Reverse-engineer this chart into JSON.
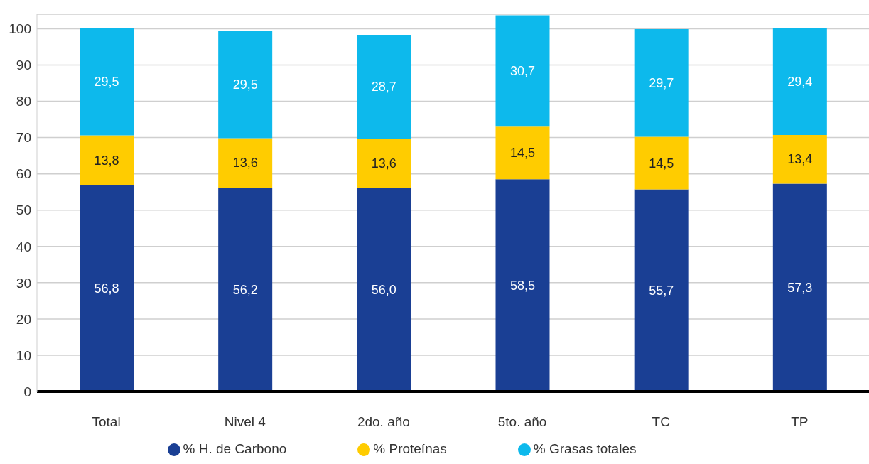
{
  "chart_data": {
    "type": "bar",
    "stacked": true,
    "categories": [
      "Total",
      "Nivel 4",
      "2do. año",
      "5to. año",
      "TC",
      "TP"
    ],
    "series": [
      {
        "name": "% H. de Carbono",
        "color": "#1a3f94",
        "values": [
          56.8,
          56.2,
          56.0,
          58.5,
          55.7,
          57.3
        ],
        "value_labels": [
          "56,8",
          "56,2",
          "56,0",
          "58,5",
          "55,7",
          "57,3"
        ]
      },
      {
        "name": "% Proteínas",
        "color": "#ffcc00",
        "values": [
          13.8,
          13.6,
          13.6,
          14.5,
          14.5,
          13.4
        ],
        "value_labels": [
          "13,8",
          "13,6",
          "13,6",
          "14,5",
          "14,5",
          "13,4"
        ]
      },
      {
        "name": "% Grasas totales",
        "color": "#0db9ec",
        "values": [
          29.5,
          29.5,
          28.7,
          30.7,
          29.7,
          29.4
        ],
        "value_labels": [
          "29,5",
          "29,5",
          "28,7",
          "30,7",
          "29,7",
          "29,4"
        ]
      }
    ],
    "ylim": [
      0,
      104
    ],
    "yticks": [
      0,
      10,
      20,
      30,
      40,
      50,
      60,
      70,
      80,
      90,
      100
    ],
    "grid": "y",
    "legend": "bottom",
    "marker": "circle"
  }
}
